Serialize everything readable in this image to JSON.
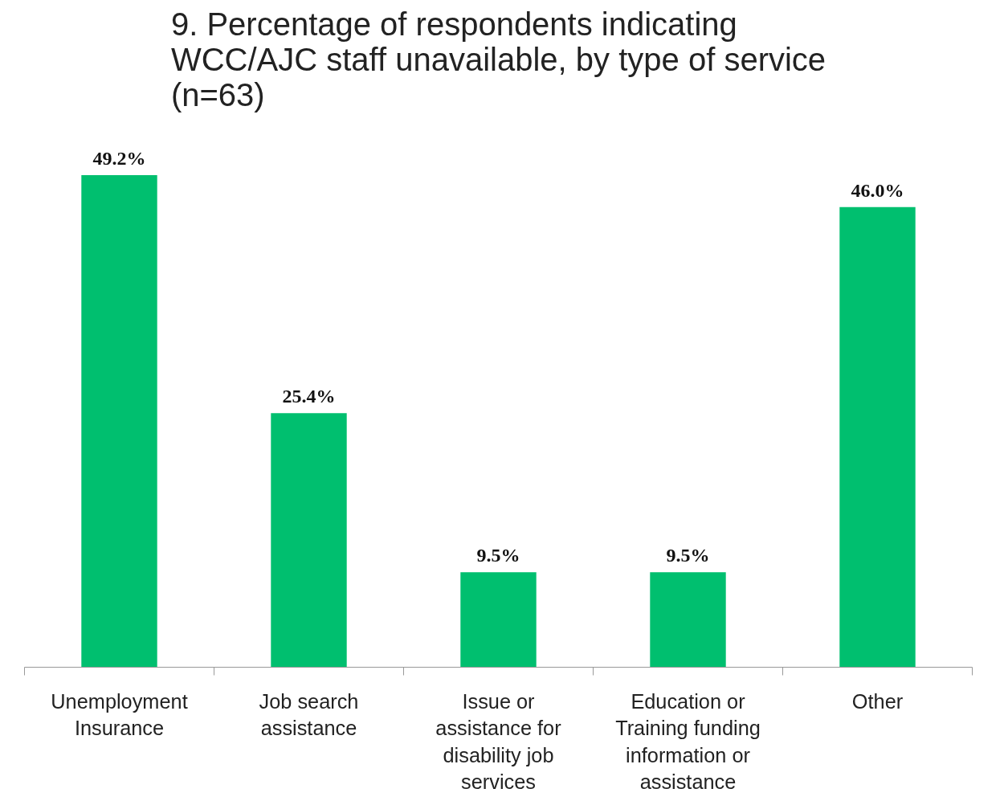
{
  "chart_data": {
    "type": "bar",
    "title": "9. Percentage of respondents indicating WCC/AJC staff unavailable, by type of service (n=63)",
    "categories": [
      "Unemployment Insurance",
      "Job search assistance",
      "Issue or assistance for disability job services",
      "Education or Training funding information or assistance",
      "Other"
    ],
    "values": [
      49.2,
      25.4,
      9.5,
      9.5,
      46.0
    ],
    "value_labels": [
      "49.2%",
      "25.4%",
      "9.5%",
      "9.5%",
      "46.0%"
    ],
    "color": "#00bf6f"
  }
}
